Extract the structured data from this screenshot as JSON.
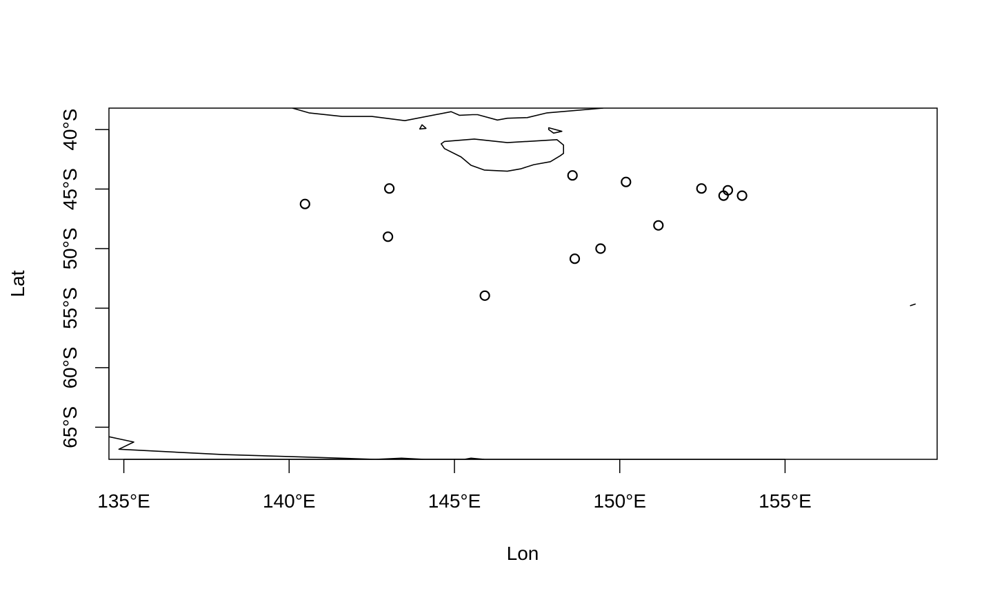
{
  "chart_data": {
    "type": "scatter",
    "title": "",
    "xlabel": "Lon",
    "ylabel": "Lat",
    "xlim": [
      134.55,
      159.6
    ],
    "ylim": [
      -67.7,
      -38.2
    ],
    "x_ticks": [
      {
        "value": 135,
        "label": "135°E"
      },
      {
        "value": 140,
        "label": "140°E"
      },
      {
        "value": 145,
        "label": "145°E"
      },
      {
        "value": 150,
        "label": "150°E"
      },
      {
        "value": 155,
        "label": "155°E"
      }
    ],
    "y_ticks": [
      {
        "value": -40,
        "label": "40°S"
      },
      {
        "value": -45,
        "label": "45°S"
      },
      {
        "value": -50,
        "label": "50°S"
      },
      {
        "value": -55,
        "label": "55°S"
      },
      {
        "value": -60,
        "label": "60°S"
      },
      {
        "value": -65,
        "label": "65°S"
      }
    ],
    "points": [
      {
        "lon": 140.48,
        "lat": -46.25
      },
      {
        "lon": 143.03,
        "lat": -44.95
      },
      {
        "lon": 142.99,
        "lat": -49.0
      },
      {
        "lon": 145.92,
        "lat": -53.95
      },
      {
        "lon": 148.57,
        "lat": -43.85
      },
      {
        "lon": 148.64,
        "lat": -50.85
      },
      {
        "lon": 149.42,
        "lat": -50.0
      },
      {
        "lon": 150.19,
        "lat": -44.4
      },
      {
        "lon": 151.17,
        "lat": -48.05
      },
      {
        "lon": 152.47,
        "lat": -44.95
      },
      {
        "lon": 153.14,
        "lat": -45.55
      },
      {
        "lon": 153.27,
        "lat": -45.1
      },
      {
        "lon": 153.7,
        "lat": -45.55
      }
    ],
    "coastlines": [
      {
        "name": "australia-south-coast",
        "closed": false,
        "coords": [
          [
            140.1,
            -38.2
          ],
          [
            140.6,
            -38.6
          ],
          [
            141.6,
            -38.9
          ],
          [
            142.5,
            -38.9
          ],
          [
            143.5,
            -39.25
          ],
          [
            144.9,
            -38.5
          ],
          [
            145.15,
            -38.8
          ],
          [
            145.55,
            -38.75
          ],
          [
            145.7,
            -38.75
          ],
          [
            146.3,
            -39.2
          ],
          [
            146.6,
            -39.05
          ],
          [
            147.2,
            -39.0
          ],
          [
            147.8,
            -38.6
          ],
          [
            149.5,
            -38.2
          ]
        ]
      },
      {
        "name": "tasmania",
        "closed": true,
        "coords": [
          [
            144.7,
            -41.0
          ],
          [
            145.6,
            -40.8
          ],
          [
            146.6,
            -41.1
          ],
          [
            147.2,
            -41.0
          ],
          [
            148.1,
            -40.85
          ],
          [
            148.3,
            -41.3
          ],
          [
            148.3,
            -42.0
          ],
          [
            148.2,
            -42.2
          ],
          [
            147.9,
            -42.7
          ],
          [
            147.4,
            -42.95
          ],
          [
            147.0,
            -43.3
          ],
          [
            146.6,
            -43.5
          ],
          [
            145.9,
            -43.4
          ],
          [
            145.5,
            -43.0
          ],
          [
            145.2,
            -42.3
          ],
          [
            144.7,
            -41.6
          ],
          [
            144.6,
            -41.2
          ]
        ]
      },
      {
        "name": "king-island",
        "closed": true,
        "coords": [
          [
            144.02,
            -39.6
          ],
          [
            144.14,
            -39.9
          ],
          [
            143.95,
            -39.95
          ]
        ]
      },
      {
        "name": "flinders-island",
        "closed": true,
        "coords": [
          [
            147.85,
            -39.85
          ],
          [
            148.25,
            -40.15
          ],
          [
            148.0,
            -40.3
          ],
          [
            147.85,
            -40.0
          ]
        ]
      },
      {
        "name": "antarctic-coast",
        "closed": false,
        "coords": [
          [
            134.55,
            -65.8
          ],
          [
            135.3,
            -66.25
          ],
          [
            134.85,
            -66.85
          ],
          [
            138.0,
            -67.3
          ],
          [
            141.0,
            -67.55
          ],
          [
            142.6,
            -67.7
          ],
          [
            143.4,
            -67.6
          ],
          [
            144.1,
            -67.7
          ],
          [
            145.3,
            -67.7
          ],
          [
            145.5,
            -67.6
          ],
          [
            145.9,
            -67.7
          ]
        ]
      },
      {
        "name": "islet-southeast",
        "closed": false,
        "coords": [
          [
            158.78,
            -54.8
          ],
          [
            158.95,
            -54.65
          ]
        ]
      }
    ]
  }
}
